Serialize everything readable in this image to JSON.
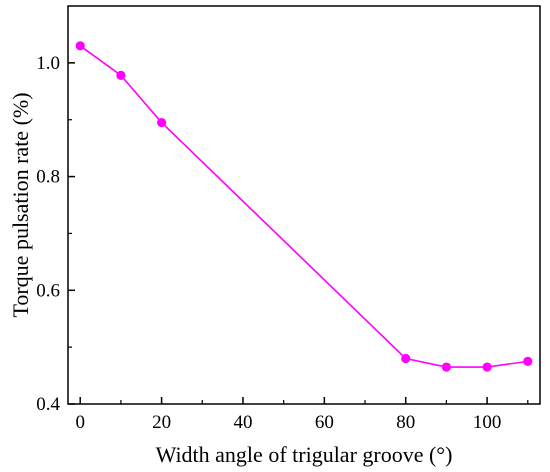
{
  "chart_data": {
    "type": "line",
    "title": "",
    "xlabel": "Width angle of trigular groove (°)",
    "ylabel": "Torque pulsation rate (%)",
    "xlim": [
      -3,
      113
    ],
    "ylim": [
      0.4,
      1.1
    ],
    "xticks": [
      0,
      20,
      40,
      60,
      80,
      100
    ],
    "yticks": [
      0.4,
      0.6,
      0.8,
      1.0
    ],
    "xtick_labels": [
      "0",
      "20",
      "40",
      "60",
      "80",
      "100"
    ],
    "ytick_labels": [
      "0.4",
      "0.6",
      "0.8",
      "1.0"
    ],
    "grid": false,
    "series": [
      {
        "color": "#ff00ff",
        "marker": "circle",
        "x": [
          0,
          10,
          20,
          80,
          90,
          100,
          110
        ],
        "y": [
          1.03,
          0.978,
          0.895,
          0.48,
          0.465,
          0.465,
          0.475
        ]
      }
    ]
  }
}
